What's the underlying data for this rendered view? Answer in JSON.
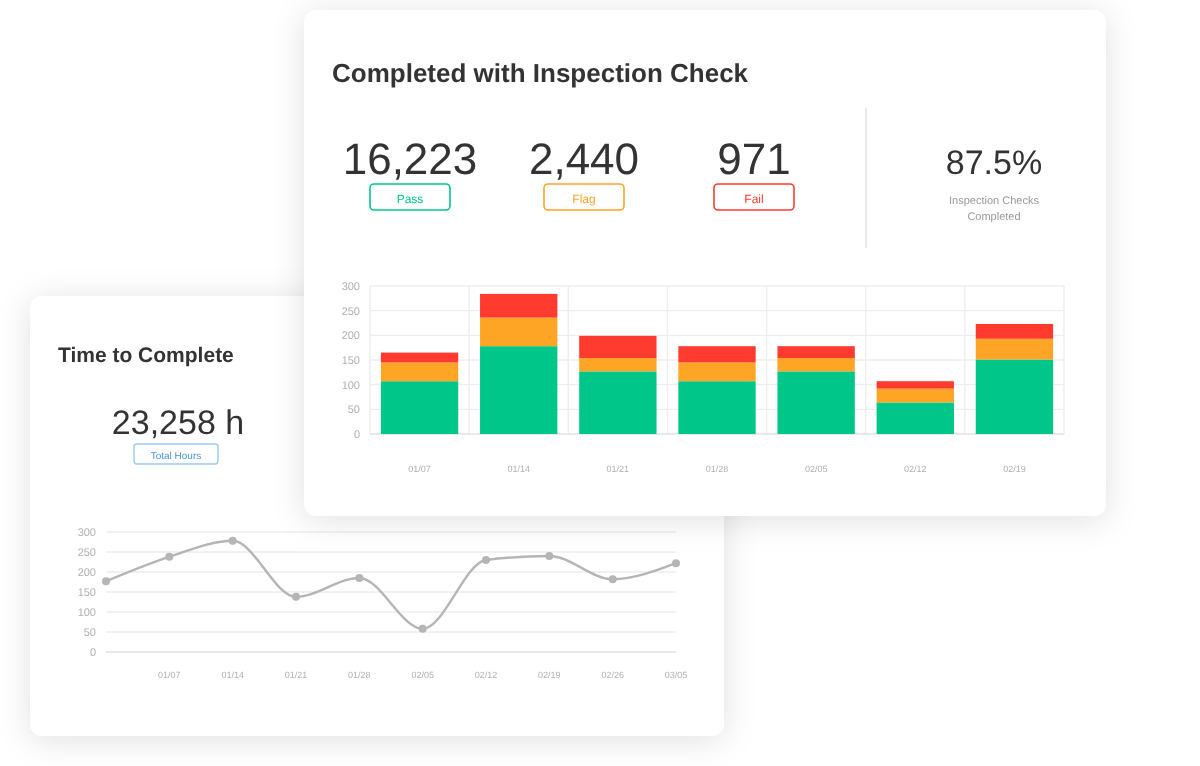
{
  "chart_data": [
    {
      "type": "bar",
      "title": "Completed with Inspection Check",
      "stacked": true,
      "categories": [
        "01/07",
        "01/14",
        "01/21",
        "01/28",
        "02/05",
        "02/12",
        "02/19"
      ],
      "series": [
        {
          "name": "Pass",
          "color": "#00c68a",
          "values": [
            107,
            178,
            127,
            107,
            127,
            64,
            151
          ]
        },
        {
          "name": "Flag",
          "color": "#ffa526",
          "values": [
            38,
            58,
            27,
            38,
            27,
            28,
            42
          ]
        },
        {
          "name": "Fail",
          "color": "#ff3b30",
          "values": [
            20,
            48,
            45,
            33,
            24,
            15,
            30
          ]
        }
      ],
      "ylim": [
        0,
        300
      ],
      "yticks": [
        0,
        50,
        100,
        150,
        200,
        250,
        300
      ],
      "grid": true,
      "legend": "top",
      "annotations": [
        "16,223",
        "2,440",
        "971",
        "87.5%",
        "Inspection Checks Completed"
      ]
    },
    {
      "type": "line",
      "title": "Time to Complete",
      "categories": [
        null,
        "01/07",
        "01/14",
        "01/21",
        "01/28",
        "02/05",
        "02/12",
        "02/19",
        "02/26",
        "03/05"
      ],
      "series": [
        {
          "color": "#b5b5b5",
          "values": [
            177,
            238,
            278,
            138,
            185,
            58,
            230,
            240,
            182,
            222
          ]
        }
      ],
      "ylim": [
        0,
        300
      ],
      "yticks": [
        0,
        50,
        100,
        150,
        200,
        250,
        300
      ],
      "grid": "y",
      "marker": "circle",
      "line_style": "solid",
      "annotations": [
        "23,258 h",
        "Total Hours"
      ]
    }
  ]
}
